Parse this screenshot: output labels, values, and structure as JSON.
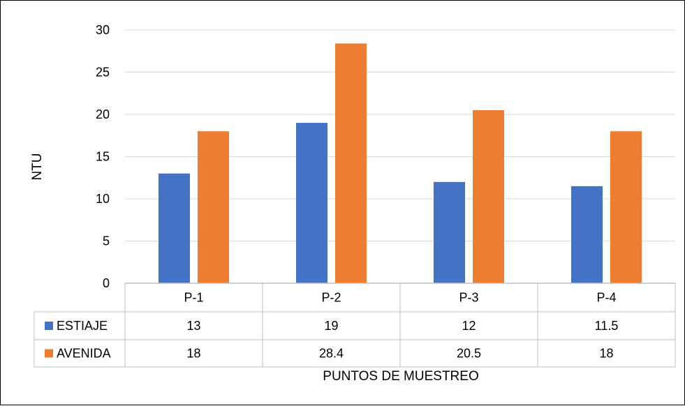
{
  "chart_data": {
    "type": "bar",
    "categories": [
      "P-1",
      "P-2",
      "P-3",
      "P-4"
    ],
    "series": [
      {
        "name": "ESTIAJE",
        "values": [
          13,
          19,
          12,
          11.5
        ],
        "labels": [
          "13",
          "19",
          "12",
          "11.5"
        ],
        "color": "#4472C4"
      },
      {
        "name": "AVENIDA",
        "values": [
          18,
          28.4,
          20.5,
          18
        ],
        "labels": [
          "18",
          "28.4",
          "20.5",
          "18"
        ],
        "color": "#ED7D31"
      }
    ],
    "ylim": [
      0,
      30
    ],
    "yticks": [
      0,
      5,
      10,
      15,
      20,
      25,
      30
    ],
    "ylabel": "NTU",
    "xlabel": "PUNTOS DE MUESTREO",
    "grid": true,
    "legend": "data-table"
  }
}
